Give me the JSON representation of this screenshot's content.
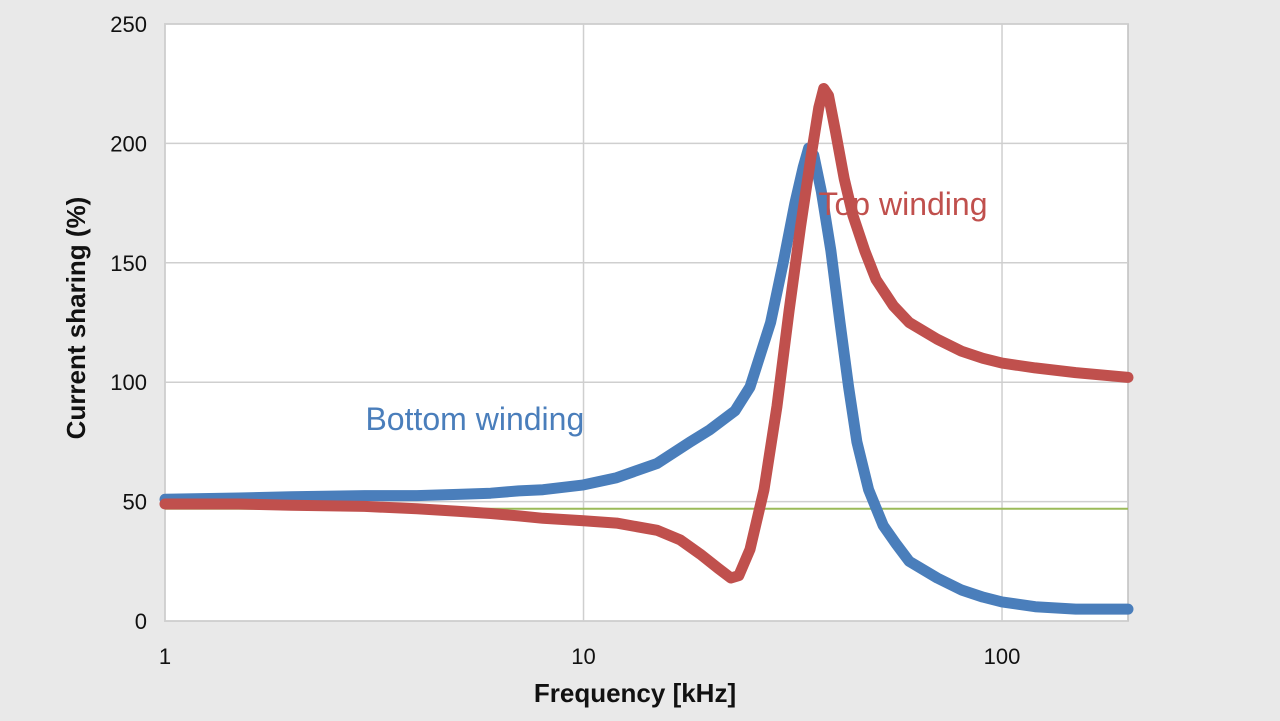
{
  "chart_data": {
    "type": "line",
    "title": "",
    "xlabel": "Frequency [kHz]",
    "ylabel": "Current sharing (%)",
    "xscale": "log",
    "xlim": [
      1,
      200
    ],
    "ylim": [
      0,
      250
    ],
    "x_ticks": [
      1,
      10,
      100
    ],
    "x_tick_labels": [
      "1",
      "10",
      "100"
    ],
    "y_ticks": [
      0,
      50,
      100,
      150,
      200,
      250
    ],
    "y_tick_labels": [
      "0",
      "50",
      "100",
      "150",
      "200",
      "250"
    ],
    "grid": true,
    "legend": "none",
    "reference_line": {
      "y": 47,
      "color": "#9bbb59"
    },
    "series": [
      {
        "name": "Bottom winding",
        "color": "#4a7ebb",
        "label_anchor": {
          "x": 5.5,
          "y": 80
        },
        "points": [
          [
            1,
            51
          ],
          [
            1.5,
            51.5
          ],
          [
            2,
            52
          ],
          [
            3,
            52.5
          ],
          [
            4,
            52.5
          ],
          [
            5,
            53
          ],
          [
            6,
            53.5
          ],
          [
            7,
            54.5
          ],
          [
            8,
            55
          ],
          [
            10,
            57
          ],
          [
            12,
            60
          ],
          [
            15,
            66
          ],
          [
            18,
            75
          ],
          [
            20,
            80
          ],
          [
            23,
            88
          ],
          [
            25,
            98
          ],
          [
            28,
            125
          ],
          [
            30,
            150
          ],
          [
            32,
            175
          ],
          [
            33.5,
            190
          ],
          [
            34.5,
            198
          ],
          [
            35.5,
            195
          ],
          [
            37,
            180
          ],
          [
            39,
            155
          ],
          [
            41,
            125
          ],
          [
            43,
            98
          ],
          [
            45,
            75
          ],
          [
            48,
            55
          ],
          [
            52,
            40
          ],
          [
            56,
            32
          ],
          [
            60,
            25
          ],
          [
            70,
            18
          ],
          [
            80,
            13
          ],
          [
            90,
            10
          ],
          [
            100,
            8
          ],
          [
            120,
            6
          ],
          [
            150,
            5
          ],
          [
            200,
            5
          ]
        ]
      },
      {
        "name": "Top winding",
        "color": "#c0504d",
        "label_anchor": {
          "x": 58,
          "y": 170
        },
        "points": [
          [
            1,
            49
          ],
          [
            1.5,
            49
          ],
          [
            2,
            48.5
          ],
          [
            3,
            48
          ],
          [
            4,
            47
          ],
          [
            5,
            46
          ],
          [
            6,
            45
          ],
          [
            7,
            44
          ],
          [
            8,
            43
          ],
          [
            10,
            42
          ],
          [
            12,
            41
          ],
          [
            15,
            38
          ],
          [
            17,
            34
          ],
          [
            19,
            28
          ],
          [
            21,
            22
          ],
          [
            22.5,
            18
          ],
          [
            23.5,
            19
          ],
          [
            25,
            30
          ],
          [
            27,
            55
          ],
          [
            29,
            90
          ],
          [
            31,
            130
          ],
          [
            33,
            165
          ],
          [
            35,
            195
          ],
          [
            36.5,
            215
          ],
          [
            37.5,
            223
          ],
          [
            38.5,
            220
          ],
          [
            40,
            205
          ],
          [
            42,
            185
          ],
          [
            44,
            170
          ],
          [
            47,
            155
          ],
          [
            50,
            143
          ],
          [
            55,
            132
          ],
          [
            60,
            125
          ],
          [
            70,
            118
          ],
          [
            80,
            113
          ],
          [
            90,
            110
          ],
          [
            100,
            108
          ],
          [
            120,
            106
          ],
          [
            150,
            104
          ],
          [
            200,
            102
          ]
        ]
      }
    ]
  }
}
